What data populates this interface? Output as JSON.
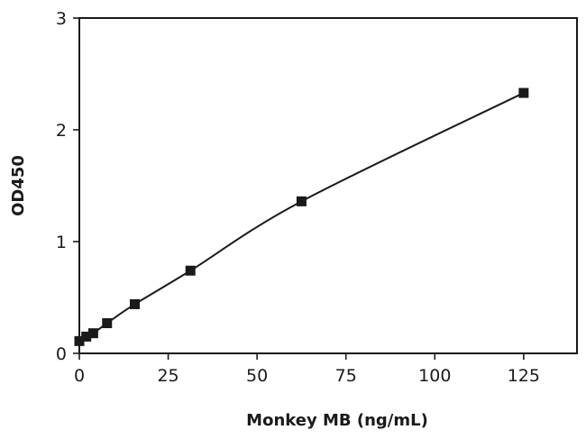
{
  "chart_data": {
    "type": "scatter",
    "title": "",
    "xlabel": "Monkey MB (ng/mL)",
    "ylabel": "OD450",
    "xlim": [
      0,
      140
    ],
    "ylim": [
      0,
      3
    ],
    "xticks": [
      0,
      25,
      50,
      75,
      100,
      125
    ],
    "yticks": [
      0,
      1,
      2,
      3
    ],
    "grid": false,
    "legend": "none",
    "series": [
      {
        "points": [
          {
            "x": 0,
            "y": 0.11
          },
          {
            "x": 1.95,
            "y": 0.15
          },
          {
            "x": 3.9,
            "y": 0.18
          },
          {
            "x": 7.8,
            "y": 0.27
          },
          {
            "x": 15.6,
            "y": 0.44
          },
          {
            "x": 31.25,
            "y": 0.74
          },
          {
            "x": 62.5,
            "y": 1.36
          },
          {
            "x": 125,
            "y": 2.33
          }
        ],
        "fit": "smooth curve",
        "color": "#1a1a1a",
        "marker": "square"
      }
    ]
  }
}
